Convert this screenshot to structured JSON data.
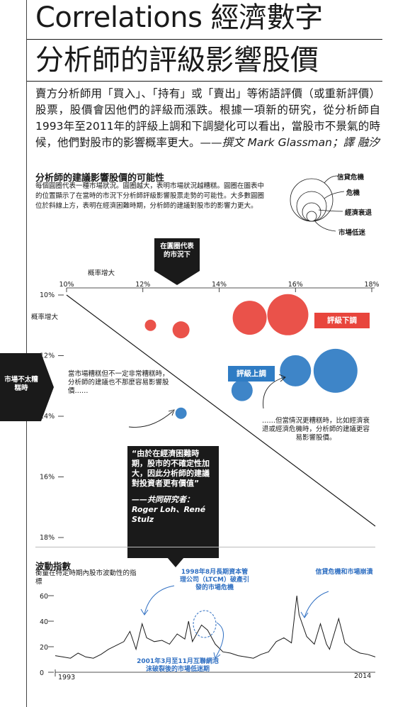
{
  "header": {
    "column_title": "Correlations 經濟數字",
    "headline": "分析師的評級影響股價",
    "intro": "賣方分析師用「買入」、「持有」或「賣出」等術語評價（或重新評價）股票，股價會因他們的評級而漲跌。根據一項新的研究，從分析師自1993年至2011年的評級上調和下調變化可以看出，當股市不景氣的時候，他們對股市的影響概率更大。——",
    "byline": "撰文 Mark Glassman；譯 融汐"
  },
  "bubble_section": {
    "title": "分析師的建議影響股價的可能性",
    "description": "每個圓圈代表一種市場狀況。圓圈越大，表明市場狀況越糟糕。圓圈在圖表中的位置顯示了在當時的市況下分析師評級影響股票走勢的可能性。大多數圓圈位於斜線上方，表明在經濟困難時期，分析師的建議對股市的影響力更大。",
    "size_legend": [
      "信貸危機",
      "危機",
      "經濟衰退",
      "市場低迷"
    ],
    "circle_meaning_callout": "在圓圈代表的市況下",
    "left_tab": "市場不太糟糕時",
    "badge_down": "評級下調",
    "badge_up": "評級上調",
    "note_left": "當市場糟糕但不一定非常糟糕時，分析師的建議也不那麼容易影響股價……",
    "note_right": "……但當情況更糟糕時，比如經濟衰退或經濟危機時，分析師的建議更容易影響股價。",
    "quote": "“由於在經濟困難時期，股市的不確定性加大，因此分析師的建議對投資者更有價值”",
    "quote_author": "——共同研究者：Roger Loh、René Stulz",
    "colors": {
      "downgrade": "#e8453c",
      "upgrade": "#2f7cc4",
      "ink": "#1a1a1a"
    }
  },
  "vix_section": {
    "title": "波動指數",
    "subtitle": "衡量在特定時期內股市波動性的指標",
    "annotations": {
      "ltcm": "1998年8月長期資本管理公司（LTCM）破產引發的市場危機",
      "credit": "信貸危機和市場崩潰",
      "dotcom": "2001年3月至11月互聯網泡沫破裂後的市場低迷期"
    }
  },
  "chart_data": [
    {
      "type": "scatter",
      "title": "分析師的建議影響股價的可能性",
      "xlabel": "概率增大",
      "ylabel": "概率增大",
      "x_ticks": [
        "10%",
        "12%",
        "14%",
        "16%",
        "18%"
      ],
      "y_ticks": [
        "10%",
        "12%",
        "14%",
        "16%",
        "18%"
      ],
      "xlim": [
        10,
        18
      ],
      "ylim": [
        10,
        18
      ],
      "y_inverted": true,
      "diagonal_reference_line": true,
      "series": [
        {
          "name": "評級下調",
          "color": "#e8453c",
          "points": [
            {
              "x": 12.2,
              "y": 11.0,
              "size": 8
            },
            {
              "x": 13.0,
              "y": 11.15,
              "size": 12
            },
            {
              "x": 14.8,
              "y": 10.75,
              "size": 24
            },
            {
              "x": 15.8,
              "y": 10.65,
              "size": 29
            }
          ]
        },
        {
          "name": "評級上調",
          "color": "#2f7cc4",
          "points": [
            {
              "x": 13.0,
              "y": 13.9,
              "size": 8
            },
            {
              "x": 14.6,
              "y": 13.15,
              "size": 15
            },
            {
              "x": 16.0,
              "y": 12.5,
              "size": 22
            },
            {
              "x": 17.05,
              "y": 12.5,
              "size": 31
            }
          ]
        }
      ]
    },
    {
      "type": "line",
      "title": "波動指數",
      "x_start_label": "1993",
      "x_end_label": "2014",
      "x_range": [
        1993,
        2014
      ],
      "y_ticks": [
        "0",
        "20",
        "40",
        "60"
      ],
      "ylim": [
        0,
        65
      ],
      "x": [
        1993,
        1993.5,
        1994,
        1994.5,
        1995,
        1995.5,
        1996,
        1996.5,
        1997,
        1997.5,
        1997.9,
        1998.3,
        1998.7,
        1999,
        1999.5,
        2000,
        2000.5,
        2001,
        2001.5,
        2001.75,
        2002,
        2002.6,
        2003,
        2003.5,
        2004,
        2004.5,
        2005,
        2005.5,
        2006,
        2006.5,
        2007,
        2007.5,
        2008,
        2008.5,
        2008.85,
        2009,
        2009.5,
        2010,
        2010.4,
        2010.8,
        2011,
        2011.6,
        2012,
        2012.5,
        2013,
        2013.5,
        2014
      ],
      "y": [
        13,
        12,
        11,
        15,
        12,
        11,
        14,
        18,
        21,
        24,
        32,
        18,
        38,
        27,
        24,
        25,
        22,
        30,
        26,
        40,
        24,
        37,
        33,
        22,
        16,
        15,
        13,
        12,
        11,
        14,
        16,
        24,
        27,
        23,
        60,
        45,
        28,
        22,
        38,
        22,
        18,
        42,
        23,
        18,
        15,
        14,
        12
      ],
      "line_color": "#1a1a1a"
    }
  ]
}
